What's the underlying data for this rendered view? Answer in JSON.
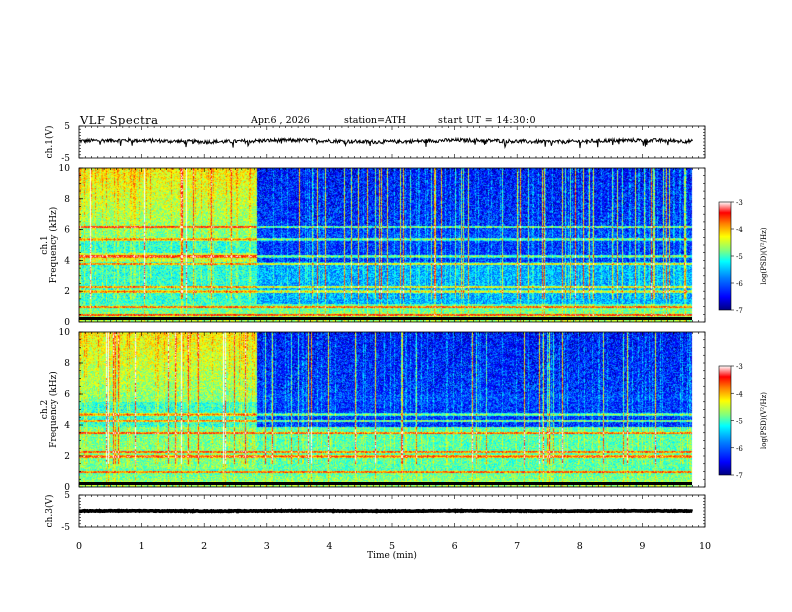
{
  "header": {
    "title": "VLF Spectra",
    "date": "Apr.6 , 2026",
    "station": "station=ATH",
    "start_ut": "start UT = 14:30:0"
  },
  "chart_data": [
    {
      "type": "line",
      "name": "waveform-ch1",
      "ylabel": "ch.1(V)",
      "ylim": [
        -5,
        5
      ],
      "yticks": [
        5,
        -5
      ],
      "xlim": [
        0,
        10
      ],
      "x_duration_min": 9.8,
      "mean_value": 0.3,
      "noise_amplitude": 0.6,
      "color": "#000000"
    },
    {
      "type": "heatmap",
      "name": "spectrogram-ch1",
      "ylabel": "ch.1\nFrequency (kHz)",
      "ylim": [
        0,
        10
      ],
      "yticks": [
        0,
        2,
        4,
        6,
        8,
        10
      ],
      "xlim": [
        0,
        10
      ],
      "x_duration_min": 9.8,
      "regime_change_min": 2.85,
      "colorbar": {
        "label": "log(PSD)(V²/Hz)",
        "ticks": [
          -3,
          -4,
          -5,
          -6,
          -7
        ],
        "range": [
          -7,
          -3
        ]
      },
      "bands_khz": [
        0.5,
        1.0,
        2.0,
        2.3,
        3.8,
        4.3,
        5.4,
        6.2
      ]
    },
    {
      "type": "heatmap",
      "name": "spectrogram-ch2",
      "ylabel": "ch.2\nFrequency (kHz)",
      "ylim": [
        0,
        10
      ],
      "yticks": [
        0,
        2,
        4,
        6,
        8,
        10
      ],
      "xlim": [
        0,
        10
      ],
      "x_duration_min": 9.8,
      "regime_change_min": 2.85,
      "colorbar": {
        "label": "log(PSD)(V²/Hz)",
        "ticks": [
          -3,
          -4,
          -5,
          -6,
          -7
        ],
        "range": [
          -7,
          -3
        ]
      },
      "bands_khz": [
        1.0,
        2.0,
        2.3,
        3.5,
        4.3,
        4.7
      ]
    },
    {
      "type": "line",
      "name": "waveform-ch3",
      "ylabel": "ch.3(V)",
      "ylim": [
        -5,
        5
      ],
      "yticks": [
        5,
        -5
      ],
      "xlim": [
        0,
        10
      ],
      "x_duration_min": 9.8,
      "mean_value": 0,
      "noise_amplitude": 0.1,
      "color": "#000000"
    }
  ],
  "x_axis": {
    "label": "Time (min)",
    "ticks": [
      0,
      1,
      2,
      3,
      4,
      5,
      6,
      7,
      8,
      9,
      10
    ]
  },
  "colormap": [
    "#00007f",
    "#0000ff",
    "#007fff",
    "#00ffff",
    "#7fff7f",
    "#ffff00",
    "#ff7f00",
    "#ff0000",
    "#ffffff"
  ]
}
